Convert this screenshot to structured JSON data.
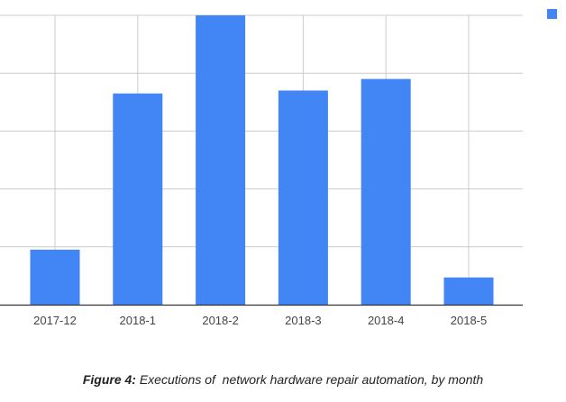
{
  "chart_data": {
    "type": "bar",
    "categories": [
      "2017-12",
      "2018-1",
      "2018-2",
      "2018-3",
      "2018-4",
      "2018-5"
    ],
    "series": [
      {
        "values": [
          9.5,
          36.5,
          50,
          37,
          39,
          4.7
        ],
        "color": "#4285f4"
      }
    ],
    "ylim": [
      0,
      50
    ],
    "gridlines": [
      0,
      10,
      20,
      30,
      40,
      50
    ],
    "grid": true,
    "ytick_labels_visible": false,
    "legend": {
      "placement": "top-right",
      "entries": [
        {
          "label": "",
          "color": "#4285f4"
        }
      ]
    }
  },
  "caption": {
    "label": "Figure 4:",
    "text": " Executions of  network hardware repair automation, by month"
  },
  "colors": {
    "bar": "#4285f4",
    "grid": "#cccccc",
    "axis": "#333333"
  }
}
